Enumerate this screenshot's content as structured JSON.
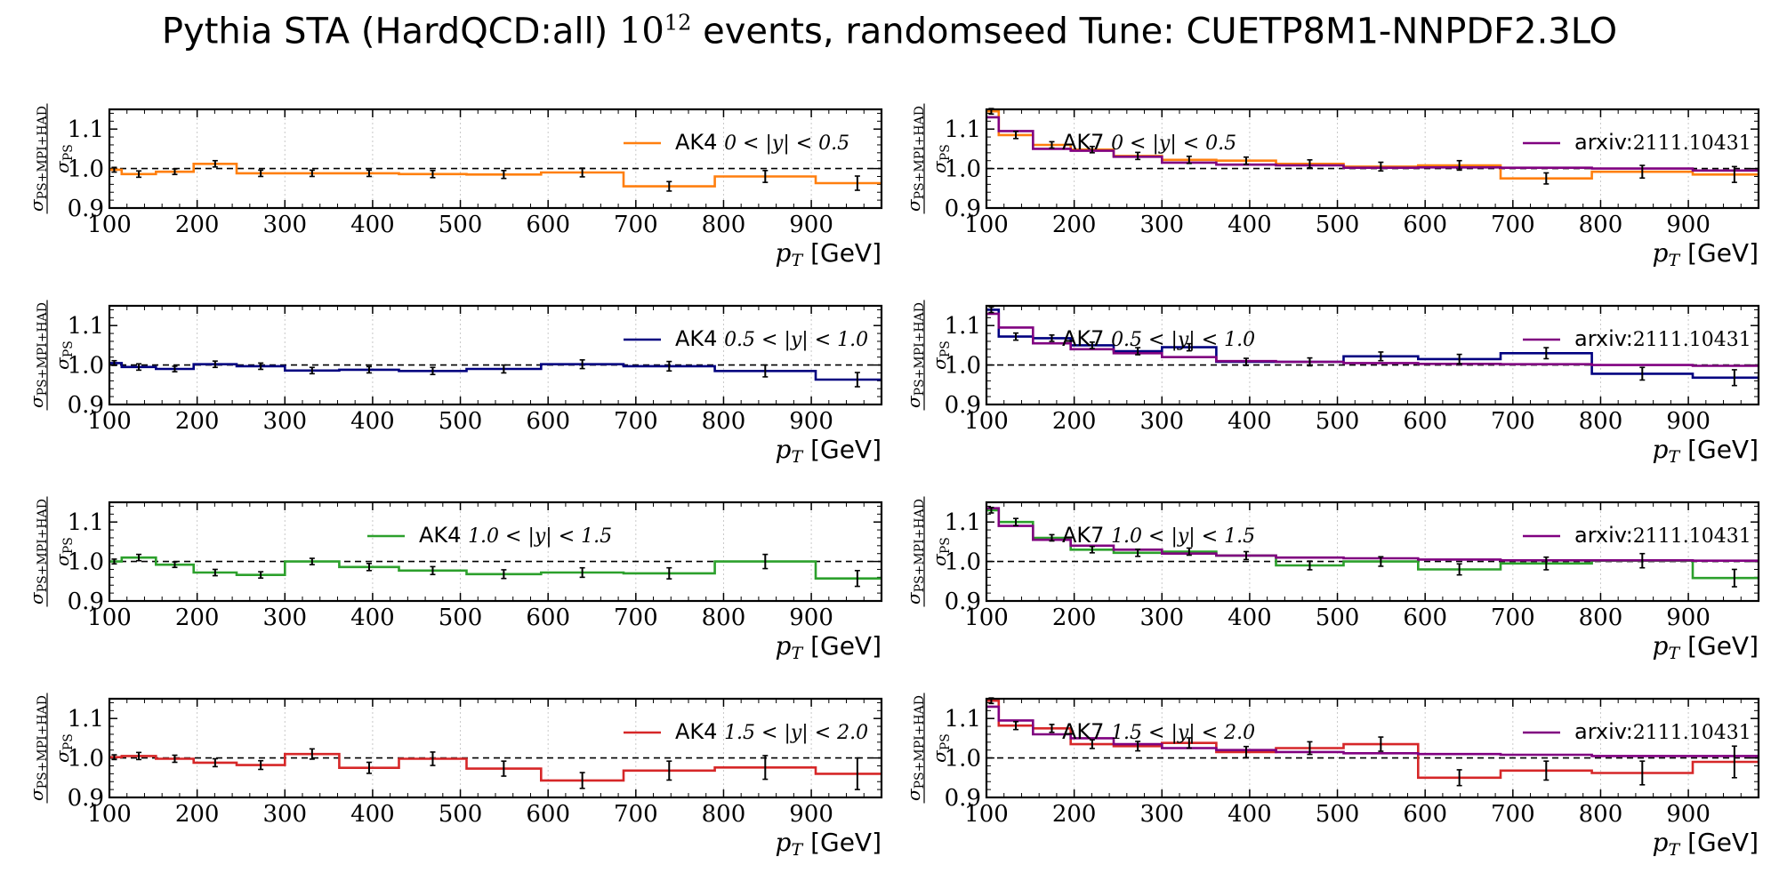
{
  "suptitle": {
    "prefix": "Pythia STA (HardQCD:all)",
    "power_base": "10",
    "power_exp": "12",
    "suffix": "events, randomseed Tune: CUETP8M1-NNPDF2.3LO"
  },
  "colors": {
    "AK4_bin1": "#ff7f0e",
    "AK4_bin2": "#000080",
    "AK4_bin3": "#2ca02c",
    "AK4_bin4": "#d62728",
    "arxiv": "#800080"
  },
  "chart_data": [
    {
      "type": "line",
      "step": true,
      "legend": [
        "AK4 0 < |y| < 0.5"
      ],
      "legend_placement": "top-right",
      "xlabel": "p_T [GeV]",
      "ylabel": "σPS / σPS+MPI+HAD",
      "xlim": [
        100,
        980
      ],
      "ylim": [
        0.9,
        1.15
      ],
      "xticks": [
        "100",
        "200",
        "300",
        "400",
        "500",
        "600",
        "700",
        "800",
        "900"
      ],
      "yticks": [
        "0.9",
        "1.0",
        "1.1"
      ],
      "grid": "vertical dotted",
      "reference_line": 1.0,
      "bin_edges": [
        97,
        114,
        153,
        196,
        245,
        300,
        362,
        430,
        507,
        592,
        686,
        790,
        905,
        1000
      ],
      "series": [
        {
          "name": "AK4 0 < |y| < 0.5",
          "color_key": "AK4_bin1",
          "values": [
            0.997,
            0.986,
            0.992,
            1.012,
            0.988,
            0.988,
            0.988,
            0.986,
            0.985,
            0.99,
            0.955,
            0.98,
            0.963
          ],
          "errors": [
            0.006,
            0.008,
            0.007,
            0.008,
            0.008,
            0.008,
            0.008,
            0.009,
            0.01,
            0.011,
            0.012,
            0.015,
            0.018
          ]
        }
      ]
    },
    {
      "type": "line",
      "step": true,
      "legend": [
        "AK7 0 < |y| < 0.5",
        "arxiv:2111.10431"
      ],
      "legend_placement": "top",
      "xlabel": "p_T [GeV]",
      "ylabel": "σPS / σPS+MPI+HAD",
      "xlim": [
        100,
        980
      ],
      "ylim": [
        0.9,
        1.15
      ],
      "xticks": [
        "100",
        "200",
        "300",
        "400",
        "500",
        "600",
        "700",
        "800",
        "900"
      ],
      "yticks": [
        "0.9",
        "1.0",
        "1.1"
      ],
      "grid": "vertical dotted",
      "reference_line": 1.0,
      "bin_edges": [
        97,
        114,
        153,
        196,
        245,
        300,
        362,
        430,
        507,
        592,
        686,
        790,
        905,
        1000
      ],
      "series": [
        {
          "name": "AK7 0 < |y| < 0.5",
          "color_key": "AK4_bin1",
          "values": [
            1.145,
            1.085,
            1.06,
            1.048,
            1.032,
            1.022,
            1.02,
            1.012,
            1.005,
            1.008,
            0.975,
            0.992,
            0.985
          ],
          "errors": [
            0.007,
            0.009,
            0.008,
            0.008,
            0.009,
            0.009,
            0.009,
            0.01,
            0.011,
            0.012,
            0.014,
            0.016,
            0.02
          ]
        },
        {
          "name": "arxiv:2111.10431",
          "color_key": "arxiv",
          "values": [
            1.13,
            1.095,
            1.05,
            1.045,
            1.03,
            1.015,
            1.01,
            1.008,
            1.002,
            1.003,
            1.002,
            1.0,
            0.995
          ],
          "errors": []
        }
      ]
    },
    {
      "type": "line",
      "step": true,
      "legend": [
        "AK4 0.5 < |y| < 1.0"
      ],
      "legend_placement": "top-right",
      "xlabel": "p_T [GeV]",
      "ylabel": "σPS / σPS+MPI+HAD",
      "xlim": [
        100,
        980
      ],
      "ylim": [
        0.9,
        1.15
      ],
      "xticks": [
        "100",
        "200",
        "300",
        "400",
        "500",
        "600",
        "700",
        "800",
        "900"
      ],
      "yticks": [
        "0.9",
        "1.0",
        "1.1"
      ],
      "grid": "vertical dotted",
      "reference_line": 1.0,
      "bin_edges": [
        97,
        114,
        153,
        196,
        245,
        300,
        362,
        430,
        507,
        592,
        686,
        790,
        905,
        1000
      ],
      "series": [
        {
          "name": "AK4 0.5 < |y| < 1.0",
          "color_key": "AK4_bin2",
          "values": [
            1.005,
            0.995,
            0.99,
            1.002,
            0.997,
            0.986,
            0.988,
            0.985,
            0.99,
            1.002,
            0.997,
            0.985,
            0.963
          ],
          "errors": [
            0.006,
            0.008,
            0.007,
            0.008,
            0.008,
            0.008,
            0.008,
            0.009,
            0.01,
            0.011,
            0.012,
            0.015,
            0.018
          ]
        }
      ]
    },
    {
      "type": "line",
      "step": true,
      "legend": [
        "AK7 0.5 < |y| < 1.0",
        "arxiv:2111.10431"
      ],
      "legend_placement": "top",
      "xlabel": "p_T [GeV]",
      "ylabel": "σPS / σPS+MPI+HAD",
      "xlim": [
        100,
        980
      ],
      "ylim": [
        0.9,
        1.15
      ],
      "xticks": [
        "100",
        "200",
        "300",
        "400",
        "500",
        "600",
        "700",
        "800",
        "900"
      ],
      "yticks": [
        "0.9",
        "1.0",
        "1.1"
      ],
      "grid": "vertical dotted",
      "reference_line": 1.0,
      "bin_edges": [
        97,
        114,
        153,
        196,
        245,
        300,
        362,
        430,
        507,
        592,
        686,
        790,
        905,
        1000
      ],
      "series": [
        {
          "name": "AK7 0.5 < |y| < 1.0",
          "color_key": "AK4_bin2",
          "values": [
            1.14,
            1.072,
            1.068,
            1.05,
            1.035,
            1.045,
            1.008,
            1.008,
            1.022,
            1.015,
            1.03,
            0.978,
            0.968
          ],
          "errors": [
            0.007,
            0.009,
            0.008,
            0.008,
            0.009,
            0.009,
            0.009,
            0.01,
            0.011,
            0.012,
            0.014,
            0.016,
            0.02
          ]
        },
        {
          "name": "arxiv:2111.10431",
          "color_key": "arxiv",
          "values": [
            1.13,
            1.095,
            1.055,
            1.04,
            1.03,
            1.02,
            1.01,
            1.008,
            1.005,
            1.003,
            1.002,
            1.0,
            0.998
          ],
          "errors": []
        }
      ]
    },
    {
      "type": "line",
      "step": true,
      "legend": [
        "AK4 1.0 < |y| < 1.5"
      ],
      "legend_placement": "top",
      "xlabel": "p_T [GeV]",
      "ylabel": "σPS / σPS+MPI+HAD",
      "xlim": [
        100,
        980
      ],
      "ylim": [
        0.9,
        1.15
      ],
      "xticks": [
        "100",
        "200",
        "300",
        "400",
        "500",
        "600",
        "700",
        "800",
        "900"
      ],
      "yticks": [
        "0.9",
        "1.0",
        "1.1"
      ],
      "grid": "vertical dotted",
      "reference_line": 1.0,
      "bin_edges": [
        97,
        114,
        153,
        196,
        245,
        300,
        362,
        430,
        507,
        592,
        686,
        790,
        905,
        1000
      ],
      "series": [
        {
          "name": "AK4 1.0 < |y| < 1.5",
          "color_key": "AK4_bin3",
          "values": [
            1.0,
            1.01,
            0.992,
            0.972,
            0.966,
            1.0,
            0.986,
            0.977,
            0.968,
            0.972,
            0.97,
            1.0,
            0.957
          ],
          "errors": [
            0.006,
            0.008,
            0.007,
            0.008,
            0.008,
            0.008,
            0.009,
            0.01,
            0.011,
            0.012,
            0.014,
            0.018,
            0.02
          ]
        }
      ]
    },
    {
      "type": "line",
      "step": true,
      "legend": [
        "AK7 1.0 < |y| < 1.5",
        "arxiv:2111.10431"
      ],
      "legend_placement": "top",
      "xlabel": "p_T [GeV]",
      "ylabel": "σPS / σPS+MPI+HAD",
      "xlim": [
        100,
        980
      ],
      "ylim": [
        0.9,
        1.15
      ],
      "xticks": [
        "100",
        "200",
        "300",
        "400",
        "500",
        "600",
        "700",
        "800",
        "900"
      ],
      "yticks": [
        "0.9",
        "1.0",
        "1.1"
      ],
      "grid": "vertical dotted",
      "reference_line": 1.0,
      "bin_edges": [
        97,
        114,
        153,
        196,
        245,
        300,
        362,
        430,
        507,
        592,
        686,
        790,
        905,
        1000
      ],
      "series": [
        {
          "name": "AK7 1.0 < |y| < 1.5",
          "color_key": "AK4_bin3",
          "values": [
            1.13,
            1.1,
            1.06,
            1.03,
            1.022,
            1.025,
            1.015,
            0.99,
            1.0,
            0.98,
            0.995,
            1.002,
            0.958
          ],
          "errors": [
            0.007,
            0.009,
            0.008,
            0.008,
            0.009,
            0.009,
            0.01,
            0.011,
            0.012,
            0.014,
            0.016,
            0.018,
            0.022
          ]
        },
        {
          "name": "arxiv:2111.10431",
          "color_key": "arxiv",
          "values": [
            1.135,
            1.09,
            1.055,
            1.04,
            1.03,
            1.02,
            1.015,
            1.01,
            1.008,
            1.005,
            1.003,
            1.003,
            1.002
          ],
          "errors": []
        }
      ]
    },
    {
      "type": "line",
      "step": true,
      "legend": [
        "AK4 1.5 < |y| < 2.0"
      ],
      "legend_placement": "top-right",
      "xlabel": "p_T [GeV]",
      "ylabel": "σPS / σPS+MPI+HAD",
      "xlim": [
        100,
        980
      ],
      "ylim": [
        0.9,
        1.15
      ],
      "xticks": [
        "100",
        "200",
        "300",
        "400",
        "500",
        "600",
        "700",
        "800",
        "900"
      ],
      "yticks": [
        "0.9",
        "1.0",
        "1.1"
      ],
      "grid": "vertical dotted",
      "reference_line": 1.0,
      "bin_edges": [
        97,
        114,
        153,
        196,
        245,
        300,
        362,
        430,
        507,
        592,
        686,
        790,
        905,
        1000
      ],
      "series": [
        {
          "name": "AK4 1.5 < |y| < 2.0",
          "color_key": "AK4_bin4",
          "values": [
            1.002,
            1.005,
            0.998,
            0.988,
            0.982,
            1.01,
            0.975,
            0.998,
            0.973,
            0.943,
            0.968,
            0.976,
            0.96
          ],
          "errors": [
            0.006,
            0.009,
            0.009,
            0.01,
            0.011,
            0.013,
            0.014,
            0.017,
            0.019,
            0.02,
            0.024,
            0.03,
            0.04
          ]
        }
      ]
    },
    {
      "type": "line",
      "step": true,
      "legend": [
        "AK7 1.5 < |y| < 2.0",
        "arxiv:2111.10431"
      ],
      "legend_placement": "top",
      "xlabel": "p_T [GeV]",
      "ylabel": "σPS / σPS+MPI+HAD",
      "xlim": [
        100,
        980
      ],
      "ylim": [
        0.9,
        1.15
      ],
      "xticks": [
        "100",
        "200",
        "300",
        "400",
        "500",
        "600",
        "700",
        "800",
        "900"
      ],
      "yticks": [
        "0.9",
        "1.0",
        "1.1"
      ],
      "grid": "vertical dotted",
      "reference_line": 1.0,
      "bin_edges": [
        97,
        114,
        153,
        196,
        245,
        300,
        362,
        430,
        507,
        592,
        686,
        790,
        905,
        1000
      ],
      "series": [
        {
          "name": "AK7 1.5 < |y| < 2.0",
          "color_key": "AK4_bin4",
          "values": [
            1.145,
            1.082,
            1.075,
            1.035,
            1.03,
            1.038,
            1.015,
            1.025,
            1.035,
            0.95,
            0.968,
            0.962,
            0.99
          ],
          "errors": [
            0.007,
            0.01,
            0.01,
            0.011,
            0.012,
            0.013,
            0.014,
            0.016,
            0.018,
            0.02,
            0.024,
            0.03,
            0.04
          ]
        },
        {
          "name": "arxiv:2111.10431",
          "color_key": "arxiv",
          "values": [
            1.13,
            1.095,
            1.06,
            1.05,
            1.035,
            1.025,
            1.02,
            1.015,
            1.012,
            1.01,
            1.008,
            1.005,
            1.005
          ],
          "errors": []
        }
      ]
    }
  ]
}
